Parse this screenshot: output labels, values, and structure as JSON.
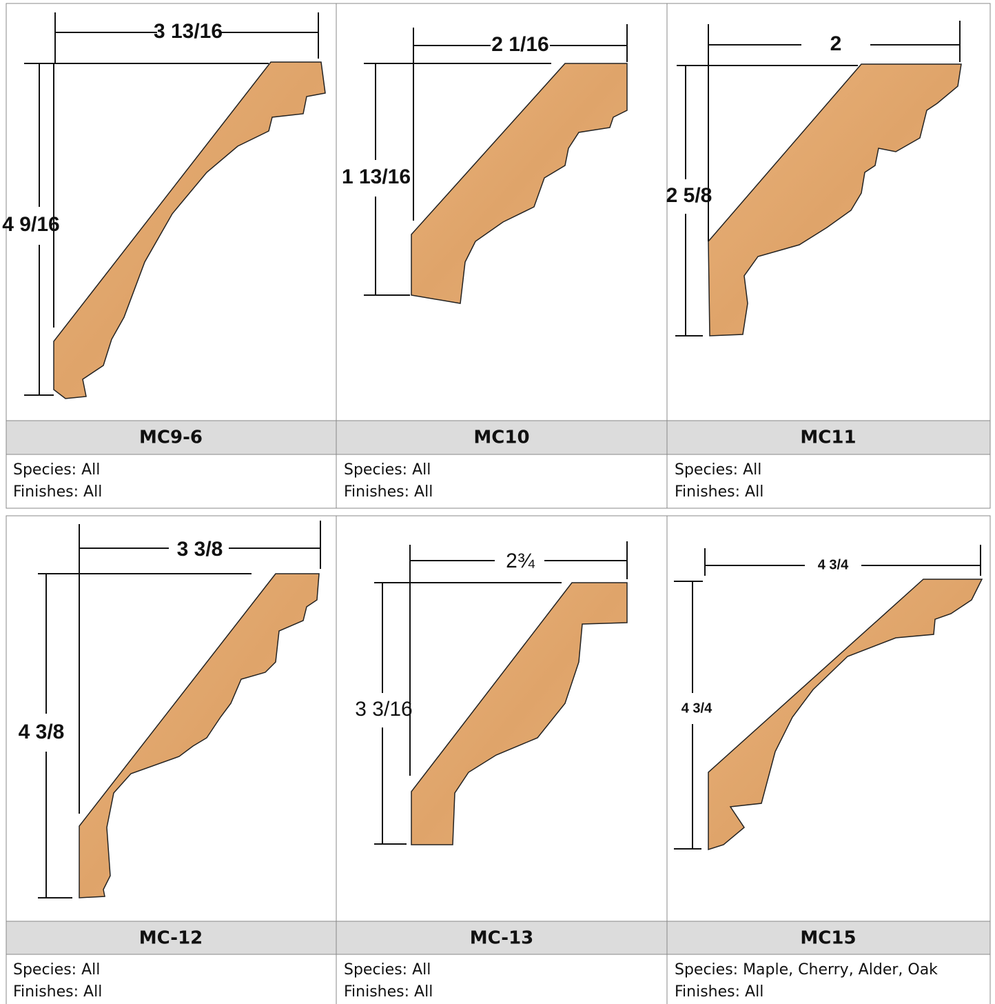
{
  "products": [
    {
      "name": "MC9-6",
      "width": "3 13/16",
      "height": "4 9/16",
      "species": "Species: All",
      "finishes": "Finishes: All"
    },
    {
      "name": "MC10",
      "width": "2 1/16",
      "height": "1 13/16",
      "species": "Species: All",
      "finishes": "Finishes: All"
    },
    {
      "name": "MC11",
      "width": "2",
      "height": "2 5/8",
      "species": "Species: All",
      "finishes": "Finishes: All"
    },
    {
      "name": "MC-12",
      "width": "3 3/8",
      "height": "4 3/8",
      "species": "Species: All",
      "finishes": "Finishes: All"
    },
    {
      "name": "MC-13",
      "width": "2¾",
      "height": "3 3/16",
      "species": "Species: All",
      "finishes": "Finishes: All"
    },
    {
      "name": "MC15",
      "width": "4 3/4",
      "height": "4 3/4",
      "species": "Species: Maple, Cherry, Alder, Oak",
      "finishes": "Finishes: All"
    }
  ]
}
